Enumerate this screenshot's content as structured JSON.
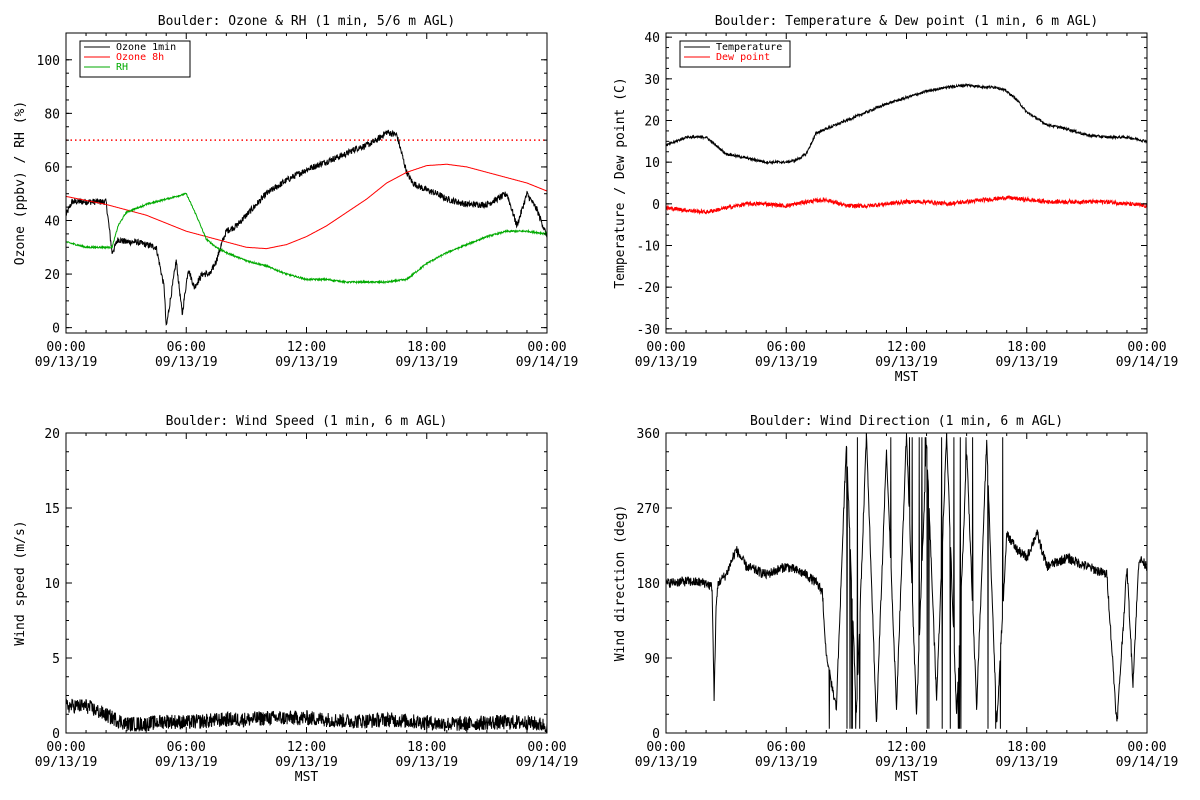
{
  "chart_data": [
    {
      "type": "line",
      "title": "Boulder: Ozone & RH (1 min, 5/6 m AGL)",
      "ylabel": "Ozone (ppbv) / RH (%)",
      "xlabel": "",
      "x_unit": "hours",
      "xlim": [
        0,
        24
      ],
      "ylim": [
        -2,
        110
      ],
      "yticks": [
        0,
        20,
        40,
        60,
        80,
        100
      ],
      "xtick_labels": [
        [
          "00:00",
          "09/13/19"
        ],
        [
          "06:00",
          "09/13/19"
        ],
        [
          "12:00",
          "09/13/19"
        ],
        [
          "18:00",
          "09/13/19"
        ],
        [
          "00:00",
          "09/14/19"
        ]
      ],
      "legend": "top-left",
      "reference_line": {
        "y": 70,
        "color": "#ff0000",
        "style": "dotted"
      },
      "series": [
        {
          "name": "Ozone 1min",
          "color": "#000000",
          "noise": 1.2,
          "x": [
            0,
            0.3,
            1,
            2,
            2.3,
            2.6,
            3,
            3.5,
            4,
            4.5,
            4.9,
            5.0,
            5.2,
            5.5,
            5.8,
            6.1,
            6.4,
            6.8,
            7.2,
            7.5,
            7.8,
            8.0,
            8.5,
            9,
            10,
            11,
            12,
            13,
            14,
            14.5,
            15,
            15.5,
            16,
            16.5,
            17,
            17.3,
            17.8,
            18.5,
            19,
            20,
            21,
            22,
            22.5,
            23,
            23.5,
            24
          ],
          "y": [
            42,
            47,
            47,
            47,
            28,
            33,
            32,
            32,
            31,
            30,
            15,
            0,
            10,
            25,
            5,
            22,
            15,
            20,
            20,
            25,
            32,
            36,
            38,
            42,
            50,
            55,
            59,
            62,
            65,
            67,
            68,
            70,
            73,
            72,
            58,
            54,
            52,
            50,
            48,
            46,
            46,
            50,
            38,
            50,
            44,
            34
          ]
        },
        {
          "name": "Ozone 8h",
          "color": "#ff0000",
          "noise": 0,
          "x": [
            0,
            1,
            2,
            3,
            4,
            5,
            6,
            7,
            8,
            9,
            10,
            11,
            12,
            13,
            14,
            15,
            16,
            17,
            18,
            19,
            20,
            21,
            22,
            23,
            24
          ],
          "y": [
            49,
            47.5,
            46,
            44,
            42,
            39,
            36,
            34,
            32,
            30,
            29.5,
            31,
            34,
            38,
            43,
            48,
            54,
            58,
            60.5,
            61,
            60,
            58,
            56,
            54,
            51
          ]
        },
        {
          "name": "RH",
          "color": "#00aa00",
          "noise": 0.3,
          "x": [
            0,
            1,
            2,
            2.3,
            2.6,
            3,
            4,
            5,
            6,
            6.5,
            7,
            7.5,
            8,
            9,
            10,
            11,
            12,
            13,
            14,
            15,
            16,
            17,
            18,
            19,
            20,
            21,
            22,
            23,
            24
          ],
          "y": [
            32,
            30,
            30,
            30,
            38,
            43,
            46,
            48,
            50,
            42,
            33,
            30,
            28,
            25,
            23,
            20,
            18,
            18,
            17,
            17,
            17,
            18,
            24,
            28,
            31,
            34,
            36,
            36,
            35
          ]
        }
      ]
    },
    {
      "type": "line",
      "title": "Boulder: Temperature & Dew point (1 min, 6 m AGL)",
      "ylabel": "Temperature / Dew point (C)",
      "xlabel": "MST",
      "x_unit": "hours",
      "xlim": [
        0,
        24
      ],
      "ylim": [
        -31,
        41
      ],
      "yticks": [
        -30,
        -20,
        -10,
        0,
        10,
        20,
        30,
        40
      ],
      "xtick_labels": [
        [
          "00:00",
          "09/13/19"
        ],
        [
          "06:00",
          "09/13/19"
        ],
        [
          "12:00",
          "09/13/19"
        ],
        [
          "18:00",
          "09/13/19"
        ],
        [
          "00:00",
          "09/14/19"
        ]
      ],
      "legend": "top-left",
      "series": [
        {
          "name": "Temperature",
          "color": "#000000",
          "noise": 0.3,
          "x": [
            0,
            1,
            2,
            2.5,
            3,
            4,
            5,
            6,
            6.5,
            7,
            7.5,
            8,
            9,
            10,
            11,
            12,
            13,
            14,
            15,
            16,
            16.5,
            17,
            17.5,
            18,
            19,
            20,
            21,
            22,
            23,
            24
          ],
          "y": [
            14,
            16,
            16,
            14,
            12,
            11,
            10,
            10,
            10.5,
            12,
            17,
            18,
            20,
            22,
            24,
            25.5,
            27,
            28,
            28.5,
            28,
            28,
            27,
            25,
            22,
            19,
            18,
            16.5,
            16,
            16,
            15
          ]
        },
        {
          "name": "Dew point",
          "color": "#ff0000",
          "noise": 0.5,
          "x": [
            0,
            1,
            2,
            3,
            4,
            5,
            6,
            7,
            8,
            9,
            10,
            11,
            12,
            13,
            14,
            15,
            16,
            17,
            18,
            19,
            20,
            21,
            22,
            23,
            24
          ],
          "y": [
            -1,
            -1.5,
            -2,
            -1,
            0,
            0,
            -0.5,
            0.5,
            1,
            -0.5,
            -0.5,
            0,
            0.5,
            0.5,
            0,
            0.5,
            1,
            1.5,
            1,
            0.5,
            0.5,
            0.5,
            0.5,
            0,
            -0.5
          ]
        }
      ]
    },
    {
      "type": "line",
      "title": "Boulder: Wind Speed (1 min, 6 m AGL)",
      "ylabel": "Wind speed (m/s)",
      "xlabel": "MST",
      "x_unit": "hours",
      "xlim": [
        0,
        24
      ],
      "ylim": [
        0,
        20
      ],
      "yticks": [
        0,
        5,
        10,
        15,
        20
      ],
      "xtick_labels": [
        [
          "00:00",
          "09/13/19"
        ],
        [
          "06:00",
          "09/13/19"
        ],
        [
          "12:00",
          "09/13/19"
        ],
        [
          "18:00",
          "09/13/19"
        ],
        [
          "00:00",
          "09/14/19"
        ]
      ],
      "series": [
        {
          "name": "",
          "color": "#000000",
          "noise": 0.5,
          "x": [
            0,
            1,
            2,
            3,
            4,
            5,
            6,
            7,
            8,
            9,
            10,
            11,
            12,
            13,
            14,
            15,
            16,
            17,
            18,
            19,
            20,
            21,
            22,
            23,
            24
          ],
          "y": [
            1.8,
            1.8,
            1.2,
            0.6,
            0.6,
            0.8,
            0.7,
            0.8,
            0.9,
            0.9,
            1.0,
            1.0,
            1.0,
            0.9,
            0.8,
            0.8,
            0.9,
            0.8,
            0.7,
            0.6,
            0.6,
            0.7,
            0.7,
            0.7,
            0.5
          ]
        }
      ]
    },
    {
      "type": "line",
      "title": "Boulder: Wind Direction (1 min, 6 m AGL)",
      "ylabel": "Wind direction (deg)",
      "xlabel": "MST",
      "x_unit": "hours",
      "xlim": [
        0,
        24
      ],
      "ylim": [
        0,
        360
      ],
      "yticks": [
        0,
        90,
        180,
        270,
        360
      ],
      "xtick_labels": [
        [
          "00:00",
          "09/13/19"
        ],
        [
          "06:00",
          "09/13/19"
        ],
        [
          "12:00",
          "09/13/19"
        ],
        [
          "18:00",
          "09/13/19"
        ],
        [
          "00:00",
          "09/14/19"
        ]
      ],
      "series": [
        {
          "name": "",
          "color": "#000000",
          "noise": 6,
          "x": [
            0,
            1,
            2,
            2.3,
            2.4,
            2.5,
            2.6,
            3,
            3.5,
            4,
            5,
            6,
            7,
            7.5,
            7.8,
            8,
            8.5,
            9,
            9.5,
            10,
            10.5,
            11,
            11.5,
            12,
            12.5,
            13,
            13.5,
            14,
            14.5,
            15,
            15.5,
            16,
            16.5,
            17,
            17.5,
            18,
            18.5,
            19,
            20,
            21,
            22,
            22.5,
            23,
            23.3,
            23.6,
            24
          ],
          "y": [
            180,
            182,
            180,
            175,
            40,
            150,
            180,
            190,
            220,
            200,
            190,
            200,
            190,
            180,
            170,
            90,
            30,
            350,
            20,
            360,
            10,
            340,
            30,
            360,
            20,
            350,
            40,
            360,
            20,
            340,
            30,
            350,
            10,
            240,
            220,
            210,
            240,
            200,
            210,
            200,
            190,
            10,
            200,
            60,
            210,
            200
          ]
        }
      ]
    }
  ]
}
